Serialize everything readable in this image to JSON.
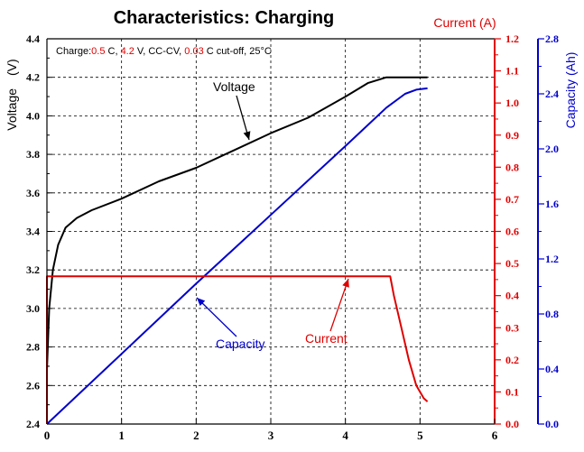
{
  "chart_data": {
    "type": "line",
    "title": "Characteristics: Charging",
    "conditions": [
      {
        "text": "Charge:",
        "color": "#000000"
      },
      {
        "text": "0.5",
        "color": "#e00000"
      },
      {
        "text": " C, ",
        "color": "#000000"
      },
      {
        "text": "4.2",
        "color": "#e00000"
      },
      {
        "text": " V, CC-CV, ",
        "color": "#000000"
      },
      {
        "text": "0.03",
        "color": "#e00000"
      },
      {
        "text": " C cut-off, 25°C",
        "color": "#000000"
      }
    ],
    "x_axis": {
      "range": [
        0,
        6
      ],
      "ticks": [
        "0",
        "1",
        "2",
        "3",
        "4",
        "5",
        "6"
      ],
      "grid": true
    },
    "y_axis_left": {
      "label": "Voltage　(V)",
      "range": [
        2.4,
        4.4
      ],
      "ticks": [
        "2.4",
        "2.6",
        "2.8",
        "3.0",
        "3.2",
        "3.4",
        "3.6",
        "3.8",
        "4.0",
        "4.2",
        "4.4"
      ],
      "color": "#000000"
    },
    "y_axis_current": {
      "label": "Current  (A)",
      "range": [
        0.0,
        1.2
      ],
      "ticks": [
        "0.0",
        "0.1",
        "0.2",
        "0.3",
        "0.4",
        "0.5",
        "0.6",
        "0.7",
        "0.8",
        "0.9",
        "1.0",
        "1.1",
        "1.2"
      ],
      "color": "#e00000"
    },
    "y_axis_capacity": {
      "label": "Capacity (Ah)",
      "range": [
        0.0,
        2.8
      ],
      "ticks": [
        "0.0",
        "0.4",
        "0.8",
        "1.2",
        "1.6",
        "2.0",
        "2.4",
        "2.8"
      ],
      "color": "#0000cc"
    },
    "series": [
      {
        "name": "Voltage",
        "axis": "left",
        "color": "#000000",
        "points": [
          [
            0.0,
            2.68
          ],
          [
            0.03,
            3.0
          ],
          [
            0.08,
            3.2
          ],
          [
            0.15,
            3.33
          ],
          [
            0.25,
            3.42
          ],
          [
            0.4,
            3.47
          ],
          [
            0.6,
            3.51
          ],
          [
            1.0,
            3.57
          ],
          [
            1.5,
            3.66
          ],
          [
            2.0,
            3.73
          ],
          [
            2.5,
            3.82
          ],
          [
            3.0,
            3.91
          ],
          [
            3.5,
            3.99
          ],
          [
            4.0,
            4.1
          ],
          [
            4.3,
            4.17
          ],
          [
            4.55,
            4.2
          ],
          [
            5.1,
            4.2
          ]
        ]
      },
      {
        "name": "Capacity",
        "axis": "capacity",
        "color": "#0000cc",
        "points": [
          [
            0.0,
            0.0
          ],
          [
            1.0,
            0.51
          ],
          [
            2.0,
            1.02
          ],
          [
            3.0,
            1.52
          ],
          [
            4.0,
            2.02
          ],
          [
            4.55,
            2.3
          ],
          [
            4.8,
            2.4
          ],
          [
            4.95,
            2.43
          ],
          [
            5.1,
            2.44
          ]
        ]
      },
      {
        "name": "Current",
        "axis": "current",
        "color": "#e00000",
        "points": [
          [
            0.0,
            0.0
          ],
          [
            0.0,
            0.46
          ],
          [
            4.6,
            0.46
          ],
          [
            4.65,
            0.4
          ],
          [
            4.75,
            0.3
          ],
          [
            4.85,
            0.2
          ],
          [
            4.95,
            0.12
          ],
          [
            5.05,
            0.08
          ],
          [
            5.1,
            0.07
          ]
        ]
      }
    ],
    "annotations": [
      {
        "text": "Voltage",
        "color": "#000000"
      },
      {
        "text": "Capacity",
        "color": "#0000cc"
      },
      {
        "text": "Current",
        "color": "#e00000"
      }
    ]
  }
}
